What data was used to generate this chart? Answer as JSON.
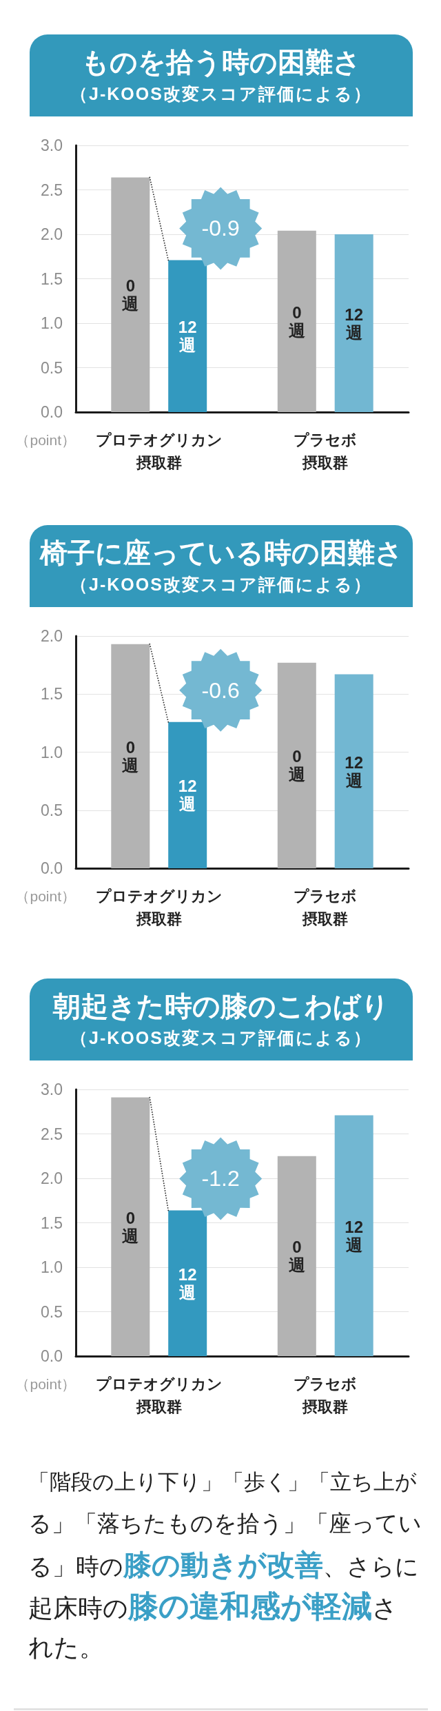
{
  "chart_data": [
    {
      "type": "bar",
      "title": "ものを拾う時の困難さ",
      "subtitle": "（J-KOOS改変スコア評価による）",
      "ylabel": "（point）",
      "categories": [
        "プロテオグリカン摂取群",
        "プラセボ摂取群"
      ],
      "series": [
        {
          "name": "0週",
          "color": "#b3b3b3",
          "values": [
            2.64,
            2.04
          ]
        },
        {
          "name": "12週",
          "colors": [
            "#3399bf",
            "#72b7d2"
          ],
          "values": [
            1.71,
            2.0
          ]
        }
      ],
      "ylim": [
        0,
        3
      ],
      "yticks": [
        {
          "value": 0,
          "label": "0.0"
        },
        0.5,
        {
          "value": 1,
          "label": "1.0"
        },
        1.5,
        {
          "value": 2,
          "label": "2.0"
        },
        2.5,
        {
          "value": 3,
          "label": "3.0"
        }
      ],
      "grid": "y",
      "annotations": [
        "-0.9"
      ]
    },
    {
      "type": "bar",
      "title": "椅子に座っている時の困難さ",
      "subtitle": "（J-KOOS改変スコア評価による）",
      "ylabel": "（point）",
      "categories": [
        "プロテオグリカン摂取群",
        "プラセボ摂取群"
      ],
      "series": [
        {
          "name": "0週",
          "color": "#b3b3b3",
          "values": [
            1.93,
            1.77
          ]
        },
        {
          "name": "12週",
          "colors": [
            "#3399bf",
            "#72b7d2"
          ],
          "values": [
            1.26,
            1.67
          ]
        }
      ],
      "ylim": [
        0,
        2
      ],
      "yticks": [
        {
          "value": 0,
          "label": "0.0"
        },
        0.5,
        {
          "value": 1,
          "label": "1.0"
        },
        1.5,
        {
          "value": 2,
          "label": "2.0"
        }
      ],
      "grid": "y",
      "annotations": [
        "-0.6"
      ]
    },
    {
      "type": "bar",
      "title": "朝起きた時の膝のこわばり",
      "subtitle": "（J-KOOS改変スコア評価による）",
      "ylabel": "（point）",
      "categories": [
        "プロテオグリカン摂取群",
        "プラセボ摂取群"
      ],
      "series": [
        {
          "name": "0週",
          "color": "#b3b3b3",
          "values": [
            2.91,
            2.25
          ]
        },
        {
          "name": "12週",
          "colors": [
            "#3399bf",
            "#72b7d2"
          ],
          "values": [
            1.64,
            2.71
          ]
        }
      ],
      "ylim": [
        0,
        3
      ],
      "yticks": [
        {
          "value": 0,
          "label": "0.0"
        },
        0.5,
        {
          "value": 1,
          "label": "1.0"
        },
        1.5,
        {
          "value": 2,
          "label": "2.0"
        },
        2.5,
        {
          "value": 3,
          "label": "3.0"
        }
      ],
      "grid": "y",
      "annotations": [
        "-1.2"
      ]
    },
    {
      "type": "other",
      "annotations": [
        "「階段の上り下り」「歩く」「立ち上が",
        "る」「落ちたものを拾う」「座ってい",
        "る」時の",
        "膝の動きが改善",
        "、さらに",
        "起床時の",
        "膝の違和感が軽減",
        "さ",
        "れた。"
      ]
    }
  ]
}
